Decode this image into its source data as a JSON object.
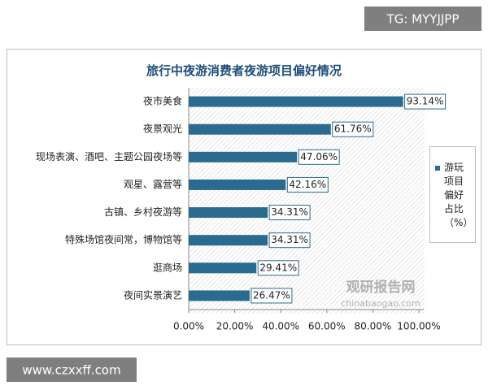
{
  "chart_data": {
    "type": "barh",
    "title": "旅行中夜游消费者夜游项目偏好情况",
    "categories": [
      "夜市美食",
      "夜景观光",
      "现场表演、酒吧、主题公园夜场等",
      "观星、露营等",
      "古镇、乡村夜游等",
      "特殊场馆夜间常，博物馆等",
      "逛商场",
      "夜间实景演艺"
    ],
    "series": [
      {
        "name": "游玩项目偏好占比（%）",
        "color": "#2a6b8f",
        "values": [
          93.14,
          61.76,
          47.06,
          42.16,
          34.31,
          34.31,
          29.41,
          26.47
        ],
        "value_labels": [
          "93.14%",
          "61.76%",
          "47.06%",
          "42.16%",
          "34.31%",
          "34.31%",
          "29.41%",
          "26.47%"
        ]
      }
    ],
    "xlim": [
      0,
      100
    ],
    "xticks": [
      {
        "value": 0,
        "label": "0.00%"
      },
      {
        "value": 20,
        "label": "20.00%"
      },
      {
        "value": 40,
        "label": "40.00%"
      },
      {
        "value": 60,
        "label": "60.00%"
      },
      {
        "value": 80,
        "label": "80.00%"
      },
      {
        "value": 100,
        "label": "100.00%"
      }
    ],
    "legend": "right"
  },
  "watermarks": {
    "top_right": "TG: MYYJJPP",
    "bottom_left": "www.czxxff.com",
    "logo_cn": "观研报告网",
    "logo_en": "chinabaogao.com"
  }
}
